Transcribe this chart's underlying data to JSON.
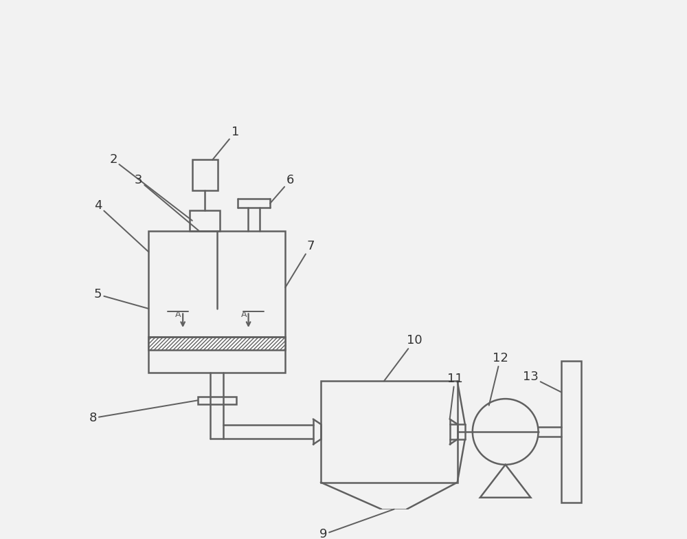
{
  "bg_color": "#f2f2f2",
  "line_color": "#606060",
  "line_width": 1.8,
  "label_color": "#333333",
  "label_fontsize": 13,
  "fig_w": 10.0,
  "fig_h": 7.84,
  "dpi": 100
}
